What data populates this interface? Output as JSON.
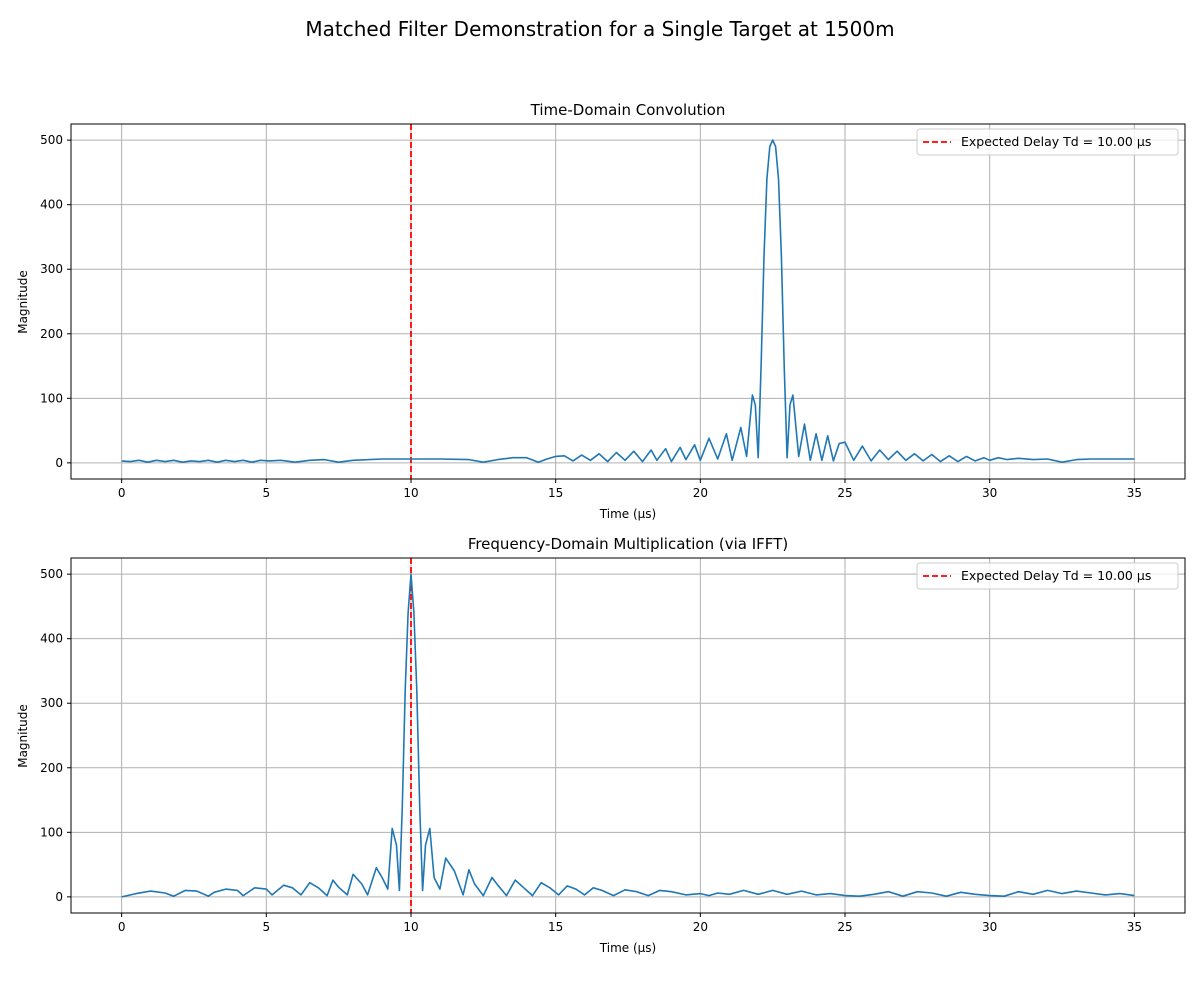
{
  "figure_title": "Matched Filter Demonstration for a Single Target at 1500m",
  "colors": {
    "signal": "#1f77b4",
    "marker": "#ff0000",
    "grid": "#b0b0b0"
  },
  "chart_data": [
    {
      "type": "line",
      "title": "Time-Domain Convolution",
      "xlabel": "Time (µs)",
      "ylabel": "Magnitude",
      "xlim": [
        -1.75,
        36.75
      ],
      "ylim": [
        -25,
        525
      ],
      "xticks": [
        0,
        5,
        10,
        15,
        20,
        25,
        30,
        35
      ],
      "yticks": [
        0,
        100,
        200,
        300,
        400,
        500
      ],
      "grid": true,
      "legend_position": "top-right",
      "series": [
        {
          "x": [
            0,
            0.3,
            0.6,
            0.9,
            1.2,
            1.5,
            1.8,
            2.1,
            2.4,
            2.7,
            3.0,
            3.3,
            3.6,
            3.9,
            4.2,
            4.5,
            4.8,
            5.1,
            5.5,
            6.0,
            6.5,
            7.0,
            7.5,
            8.0,
            9.0,
            10.0,
            11.0,
            12.0,
            12.5,
            13.0,
            13.5,
            14.0,
            14.4,
            14.7,
            15.0,
            15.3,
            15.6,
            15.9,
            16.2,
            16.5,
            16.8,
            17.1,
            17.4,
            17.7,
            18.0,
            18.3,
            18.5,
            18.8,
            19.0,
            19.3,
            19.5,
            19.8,
            20.0,
            20.3,
            20.6,
            20.9,
            21.1,
            21.4,
            21.6,
            21.8,
            21.9,
            22.0,
            22.1,
            22.2,
            22.3,
            22.4,
            22.5,
            22.6,
            22.7,
            22.8,
            22.9,
            23.0,
            23.1,
            23.2,
            23.4,
            23.6,
            23.8,
            24.0,
            24.2,
            24.4,
            24.6,
            24.8,
            25.0,
            25.3,
            25.6,
            25.9,
            26.2,
            26.5,
            26.8,
            27.1,
            27.4,
            27.7,
            28.0,
            28.3,
            28.6,
            28.9,
            29.2,
            29.5,
            29.8,
            30.0,
            30.3,
            30.6,
            31.0,
            31.5,
            32.0,
            32.5,
            33.0,
            33.5,
            34.0,
            34.5,
            35.0
          ],
          "y": [
            3,
            2,
            4,
            1,
            4,
            2,
            4,
            1,
            3,
            2,
            4,
            1,
            4,
            2,
            4,
            1,
            4,
            3,
            4,
            1,
            4,
            5,
            1,
            4,
            6,
            6,
            6,
            5,
            1,
            5,
            8,
            8,
            1,
            6,
            10,
            11,
            3,
            12,
            4,
            14,
            2,
            16,
            4,
            18,
            2,
            20,
            4,
            22,
            2,
            24,
            5,
            28,
            4,
            38,
            6,
            45,
            4,
            55,
            10,
            105,
            90,
            8,
            150,
            320,
            440,
            490,
            500,
            490,
            440,
            320,
            150,
            8,
            90,
            105,
            10,
            60,
            4,
            45,
            4,
            42,
            3,
            30,
            32,
            4,
            26,
            3,
            20,
            5,
            18,
            4,
            14,
            3,
            13,
            2,
            11,
            2,
            10,
            3,
            8,
            4,
            8,
            5,
            7,
            5,
            6,
            1,
            5,
            6,
            6,
            6,
            6
          ]
        }
      ],
      "vline": {
        "x": 10.0,
        "label": "Expected Delay Td = 10.00 µs"
      }
    },
    {
      "type": "line",
      "title": "Frequency-Domain Multiplication (via IFFT)",
      "xlabel": "Time (µs)",
      "ylabel": "Magnitude",
      "xlim": [
        -1.75,
        36.75
      ],
      "ylim": [
        -25,
        525
      ],
      "xticks": [
        0,
        5,
        10,
        15,
        20,
        25,
        30,
        35
      ],
      "yticks": [
        0,
        100,
        200,
        300,
        400,
        500
      ],
      "grid": true,
      "legend_position": "top-right",
      "series": [
        {
          "x": [
            0,
            0.5,
            1.0,
            1.5,
            1.8,
            2.2,
            2.6,
            3.0,
            3.2,
            3.6,
            4.0,
            4.2,
            4.6,
            5.0,
            5.2,
            5.6,
            5.9,
            6.2,
            6.5,
            6.8,
            7.1,
            7.3,
            7.5,
            7.8,
            8.0,
            8.3,
            8.5,
            8.8,
            9.0,
            9.2,
            9.35,
            9.5,
            9.6,
            9.7,
            9.8,
            9.9,
            10.0,
            10.1,
            10.2,
            10.3,
            10.4,
            10.5,
            10.65,
            10.8,
            11.0,
            11.2,
            11.5,
            11.8,
            12.0,
            12.2,
            12.5,
            12.8,
            13.0,
            13.3,
            13.6,
            13.9,
            14.2,
            14.5,
            14.8,
            15.1,
            15.4,
            15.7,
            16.0,
            16.3,
            16.6,
            17.0,
            17.4,
            17.8,
            18.2,
            18.6,
            19.0,
            19.5,
            20.0,
            20.3,
            20.6,
            21.0,
            21.5,
            22.0,
            22.5,
            23.0,
            23.5,
            24.0,
            24.5,
            25.0,
            25.5,
            26.0,
            26.5,
            27.0,
            27.5,
            28.0,
            28.5,
            29.0,
            29.5,
            30.0,
            30.5,
            31.0,
            31.5,
            32.0,
            32.5,
            33.0,
            33.5,
            34.0,
            34.5,
            35.0
          ],
          "y": [
            0,
            5,
            9,
            6,
            1,
            10,
            9,
            1,
            7,
            12,
            10,
            2,
            14,
            12,
            3,
            18,
            14,
            3,
            22,
            14,
            2,
            26,
            15,
            3,
            35,
            20,
            3,
            45,
            30,
            12,
            106,
            80,
            10,
            140,
            320,
            440,
            500,
            440,
            320,
            140,
            10,
            80,
            106,
            30,
            12,
            60,
            40,
            3,
            42,
            20,
            2,
            30,
            18,
            2,
            26,
            14,
            2,
            22,
            14,
            3,
            17,
            12,
            3,
            14,
            10,
            2,
            11,
            8,
            2,
            10,
            8,
            3,
            5,
            2,
            6,
            4,
            10,
            4,
            10,
            4,
            9,
            3,
            5,
            2,
            1,
            4,
            8,
            1,
            8,
            6,
            1,
            7,
            4,
            2,
            1,
            8,
            4,
            10,
            5,
            9,
            6,
            3,
            5,
            2
          ]
        }
      ],
      "vline": {
        "x": 10.0,
        "label": "Expected Delay Td = 10.00 µs"
      }
    }
  ]
}
